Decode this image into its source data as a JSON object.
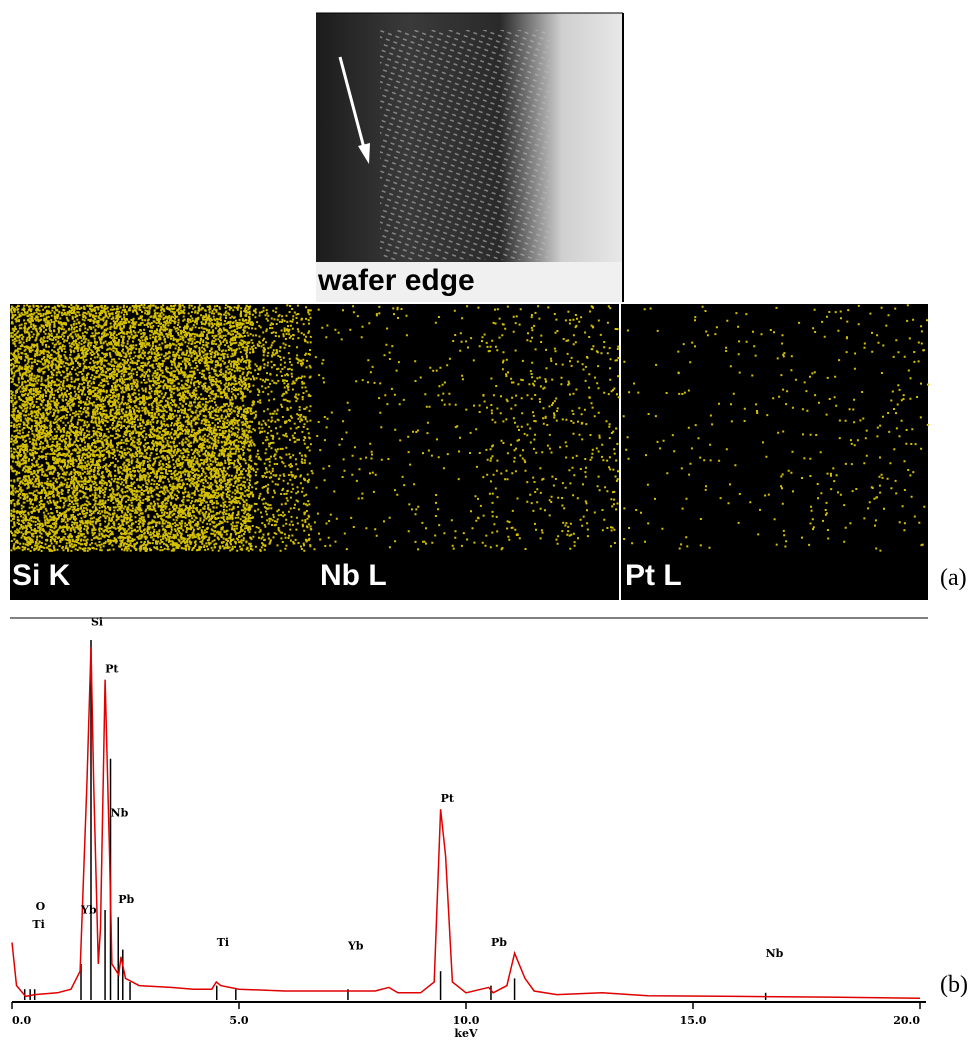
{
  "figure": {
    "sem_label": "wafer edge",
    "map_labels": [
      "Si K",
      "Nb L",
      "Pt L"
    ],
    "panel_labels": [
      "(a)",
      "(b)"
    ]
  },
  "chart_data": {
    "type": "line",
    "xlabel": "keV",
    "x": [
      0.0,
      0.1,
      0.3,
      0.5,
      1.0,
      1.3,
      1.5,
      1.65,
      1.74,
      1.8,
      1.9,
      1.95,
      2.05,
      2.15,
      2.2,
      2.35,
      2.4,
      2.5,
      2.8,
      3.5,
      4.0,
      4.4,
      4.5,
      4.6,
      5.0,
      6.0,
      7.0,
      8.0,
      8.3,
      8.5,
      9.0,
      9.3,
      9.44,
      9.55,
      9.7,
      10.0,
      10.5,
      10.6,
      10.9,
      11.07,
      11.3,
      11.5,
      12.0,
      13.0,
      14.0,
      16.0,
      18.0,
      20.0
    ],
    "series": [
      {
        "color": "#e00000",
        "values": [
          16,
          4,
          1,
          1.5,
          2,
          3,
          8,
          60,
          98,
          60,
          10,
          20,
          89,
          40,
          10,
          7,
          12,
          6,
          4,
          3.5,
          3,
          3,
          5,
          4,
          3,
          2.5,
          2.5,
          2.5,
          3.5,
          2,
          2,
          5,
          53,
          40,
          5,
          2,
          3.5,
          2,
          4,
          13,
          6,
          2.5,
          1.5,
          2,
          1.2,
          1,
          0.8,
          0.5
        ]
      }
    ],
    "element_lines": [
      {
        "x": 0.28,
        "height": 3
      },
      {
        "x": 0.4,
        "height": 3
      },
      {
        "x": 0.5,
        "height": 3
      },
      {
        "x": 1.52,
        "height": 10
      },
      {
        "x": 1.74,
        "height": 100
      },
      {
        "x": 2.05,
        "height": 25
      },
      {
        "x": 2.17,
        "height": 67
      },
      {
        "x": 2.34,
        "height": 23
      },
      {
        "x": 2.44,
        "height": 14
      },
      {
        "x": 2.6,
        "height": 5
      },
      {
        "x": 4.51,
        "height": 4
      },
      {
        "x": 4.93,
        "height": 3
      },
      {
        "x": 7.4,
        "height": 3
      },
      {
        "x": 9.44,
        "height": 8
      },
      {
        "x": 10.55,
        "height": 4
      },
      {
        "x": 11.07,
        "height": 6
      },
      {
        "x": 16.6,
        "height": 2
      }
    ],
    "peak_labels": [
      {
        "text": "Si",
        "x": 1.74,
        "y": 104
      },
      {
        "text": "Pt",
        "x": 2.05,
        "y": 91
      },
      {
        "text": "Nb",
        "x": 2.17,
        "y": 51
      },
      {
        "text": "Pb",
        "x": 2.34,
        "y": 27
      },
      {
        "text": "Yb",
        "x": 1.52,
        "y": 24
      },
      {
        "text": "O",
        "x": 0.52,
        "y": 25
      },
      {
        "text": "Ti",
        "x": 0.45,
        "y": 20
      },
      {
        "text": "Ti",
        "x": 4.51,
        "y": 15
      },
      {
        "text": "Yb",
        "x": 7.4,
        "y": 14
      },
      {
        "text": "Pt",
        "x": 9.44,
        "y": 55
      },
      {
        "text": "Pb",
        "x": 10.55,
        "y": 15
      },
      {
        "text": "Nb",
        "x": 16.6,
        "y": 12
      }
    ],
    "xlim": [
      0,
      20
    ],
    "ylim": [
      0,
      100
    ],
    "xticks": [
      {
        "value": 0,
        "label": "0.0"
      },
      {
        "value": 5,
        "label": "5.0"
      },
      {
        "value": 10,
        "label": "10.0"
      },
      {
        "value": 15,
        "label": "15.0"
      },
      {
        "value": 20,
        "label": "20.0"
      }
    ]
  }
}
